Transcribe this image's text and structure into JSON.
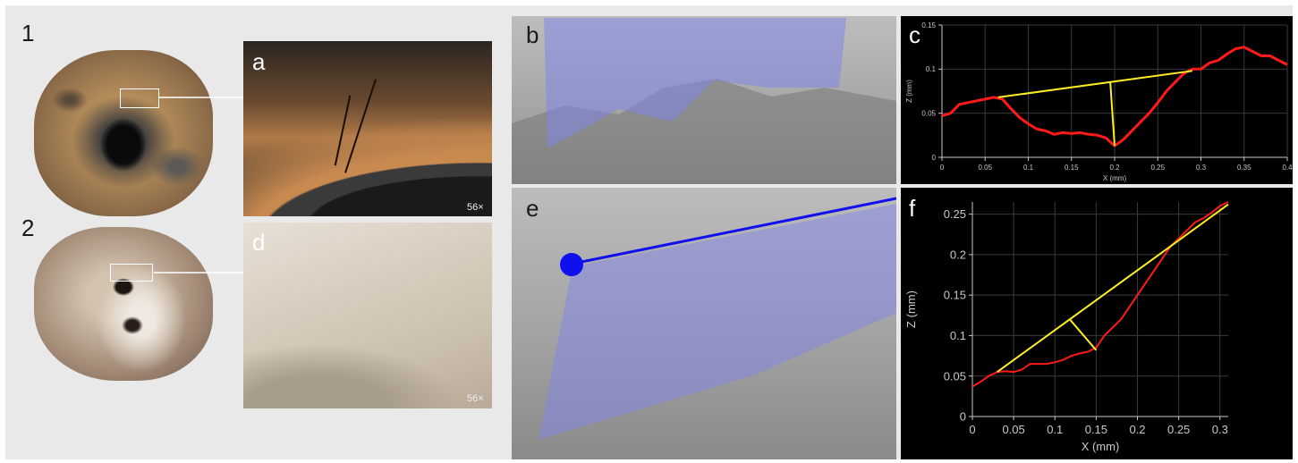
{
  "panels": {
    "p1": "1",
    "p2": "2",
    "a": "a",
    "b": "b",
    "c": "c",
    "d": "d",
    "e": "e",
    "f": "f"
  },
  "magnification": {
    "a": "56×",
    "d": "56×"
  },
  "colors": {
    "profile": "#ff1a1a",
    "chord": "#ffee22",
    "selection_plane": "#7f86e8",
    "measure_line": "#1010ee",
    "grid": "#3a3a3a",
    "axis_text": "#c8c8c8"
  },
  "chart_data": [
    {
      "id": "c",
      "type": "line",
      "xlabel": "X (mm)",
      "ylabel": "Z (mm)",
      "xlim": [
        0,
        0.4
      ],
      "ylim": [
        0,
        0.15
      ],
      "x_ticks": [
        0,
        0.05,
        0.1,
        0.15,
        0.2,
        0.25,
        0.3,
        0.35,
        0.4
      ],
      "y_ticks": [
        0,
        0.05,
        0.1,
        0.15
      ],
      "x_tick_labels": [
        "0",
        "0.05",
        "0.1",
        "0.15",
        "0.2",
        "0.25",
        "0.3",
        "0.35",
        "0.4"
      ],
      "y_tick_labels": [
        "0",
        "0.05",
        "0.1",
        "0.15"
      ],
      "grid": true,
      "series": [
        {
          "x": [
            0,
            0.01,
            0.02,
            0.03,
            0.04,
            0.05,
            0.06,
            0.07,
            0.08,
            0.09,
            0.1,
            0.11,
            0.12,
            0.13,
            0.14,
            0.15,
            0.16,
            0.17,
            0.18,
            0.19,
            0.2,
            0.21,
            0.22,
            0.23,
            0.24,
            0.25,
            0.26,
            0.27,
            0.28,
            0.29,
            0.3,
            0.31,
            0.32,
            0.33,
            0.34,
            0.35,
            0.36,
            0.37,
            0.38,
            0.39,
            0.4
          ],
          "y": [
            0.047,
            0.05,
            0.06,
            0.062,
            0.064,
            0.066,
            0.068,
            0.066,
            0.055,
            0.045,
            0.038,
            0.032,
            0.03,
            0.026,
            0.028,
            0.027,
            0.028,
            0.026,
            0.025,
            0.022,
            0.013,
            0.02,
            0.03,
            0.04,
            0.05,
            0.062,
            0.075,
            0.085,
            0.095,
            0.1,
            0.1,
            0.107,
            0.11,
            0.117,
            0.123,
            0.125,
            0.12,
            0.115,
            0.115,
            0.11,
            0.105
          ]
        }
      ],
      "chord": {
        "x1": 0.065,
        "y1": 0.068,
        "x2": 0.29,
        "y2": 0.098
      },
      "depth_line": {
        "x1": 0.195,
        "y1": 0.085,
        "x2": 0.2,
        "y2": 0.013
      }
    },
    {
      "id": "f",
      "type": "line",
      "xlabel": "X (mm)",
      "ylabel": "Z (mm)",
      "xlim": [
        0,
        0.31
      ],
      "ylim": [
        0,
        0.265
      ],
      "x_ticks": [
        0,
        0.05,
        0.1,
        0.15,
        0.2,
        0.25,
        0.3
      ],
      "y_ticks": [
        0,
        0.05,
        0.1,
        0.15,
        0.2,
        0.25
      ],
      "x_tick_labels": [
        "0",
        "0.05",
        "0.1",
        "0.15",
        "0.2",
        "0.25",
        "0.3"
      ],
      "y_tick_labels": [
        "0",
        "0.05",
        "0.1",
        "0.15",
        "0.2",
        "0.25"
      ],
      "grid": true,
      "series": [
        {
          "x": [
            0,
            0.01,
            0.02,
            0.03,
            0.04,
            0.05,
            0.06,
            0.07,
            0.08,
            0.09,
            0.1,
            0.11,
            0.12,
            0.13,
            0.14,
            0.15,
            0.16,
            0.17,
            0.18,
            0.19,
            0.2,
            0.21,
            0.22,
            0.23,
            0.24,
            0.25,
            0.26,
            0.27,
            0.28,
            0.29,
            0.3,
            0.31
          ],
          "y": [
            0.037,
            0.043,
            0.05,
            0.055,
            0.056,
            0.055,
            0.058,
            0.065,
            0.065,
            0.065,
            0.067,
            0.07,
            0.075,
            0.078,
            0.08,
            0.085,
            0.1,
            0.11,
            0.12,
            0.135,
            0.15,
            0.165,
            0.18,
            0.195,
            0.21,
            0.22,
            0.23,
            0.24,
            0.245,
            0.252,
            0.26,
            0.265
          ]
        }
      ],
      "chord": {
        "x1": 0.03,
        "y1": 0.055,
        "x2": 0.31,
        "y2": 0.262
      },
      "depth_line": {
        "x1": 0.118,
        "y1": 0.12,
        "x2": 0.15,
        "y2": 0.082
      }
    }
  ]
}
